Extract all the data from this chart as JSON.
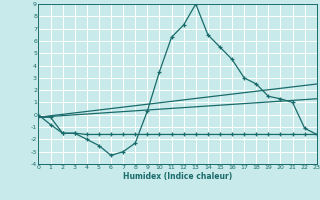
{
  "xlabel": "Humidex (Indice chaleur)",
  "bg_color": "#c8eaea",
  "grid_color": "#ffffff",
  "line_color": "#1a6b6b",
  "xlim": [
    0,
    23
  ],
  "ylim": [
    -4,
    9
  ],
  "xticks": [
    0,
    1,
    2,
    3,
    4,
    5,
    6,
    7,
    8,
    9,
    10,
    11,
    12,
    13,
    14,
    15,
    16,
    17,
    18,
    19,
    20,
    21,
    22,
    23
  ],
  "yticks": [
    -4,
    -3,
    -2,
    -1,
    0,
    1,
    2,
    3,
    4,
    5,
    6,
    7,
    8,
    9
  ],
  "curve1_x": [
    0,
    1,
    2,
    3,
    4,
    5,
    6,
    7,
    8,
    9,
    10,
    11,
    12,
    13,
    14,
    15,
    16,
    17,
    18,
    19,
    20,
    21,
    22,
    23
  ],
  "curve1_y": [
    0,
    -0.8,
    -1.5,
    -1.5,
    -2,
    -2.5,
    -3.3,
    -3.0,
    -2.3,
    0.3,
    3.5,
    6.3,
    7.3,
    9.0,
    6.5,
    5.5,
    4.5,
    3.0,
    2.5,
    1.5,
    1.3,
    1.0,
    -1.1,
    -1.6
  ],
  "curve2_x": [
    0,
    1,
    2,
    3,
    4,
    5,
    6,
    7,
    8,
    9,
    10,
    11,
    12,
    13,
    14,
    15,
    16,
    17,
    18,
    19,
    20,
    21,
    22,
    23
  ],
  "curve2_y": [
    -0.2,
    -0.2,
    -1.5,
    -1.5,
    -1.6,
    -1.6,
    -1.6,
    -1.6,
    -1.6,
    -1.6,
    -1.6,
    -1.6,
    -1.6,
    -1.6,
    -1.6,
    -1.6,
    -1.6,
    -1.6,
    -1.6,
    -1.6,
    -1.6,
    -1.6,
    -1.6,
    -1.6
  ],
  "curve3_x": [
    0,
    23
  ],
  "curve3_y": [
    -0.2,
    1.3
  ],
  "curve4_x": [
    0,
    23
  ],
  "curve4_y": [
    -0.2,
    2.5
  ]
}
